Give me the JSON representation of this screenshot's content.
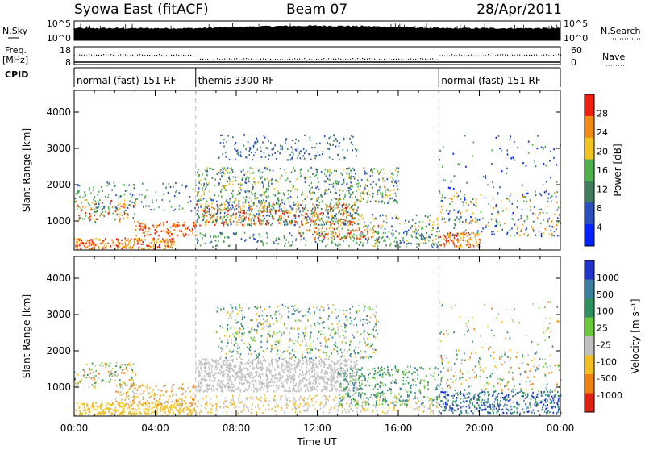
{
  "header": {
    "station": "Syowa East (fitACF)",
    "beam": "Beam 07",
    "date": "28/Apr/2011"
  },
  "nsky_panel": {
    "left_label": "N.Sky",
    "right_label": "N.Search",
    "left_ticks": [
      "10^5",
      "10^0"
    ],
    "right_ticks": [
      "10^5",
      "10^0"
    ]
  },
  "freq_panel": {
    "left_label_top": "Freq.",
    "left_label_bottom": "[MHz]",
    "right_label": "Nave",
    "left_ticks": [
      "18",
      "8"
    ],
    "right_ticks": [
      "60",
      "0"
    ]
  },
  "cpid_panel": {
    "label": "CPID",
    "segments": [
      {
        "label": "normal (fast) 151 RF",
        "start_hour": 0,
        "end_hour": 6
      },
      {
        "label": "themis 3300 RF",
        "start_hour": 6,
        "end_hour": 18
      },
      {
        "label": "normal (fast) 151 RF",
        "start_hour": 18,
        "end_hour": 24
      }
    ]
  },
  "chart_data": [
    {
      "type": "heatmap",
      "ylabel": "Slant Range [km]",
      "yticks": [
        "1000",
        "2000",
        "3000",
        "4000"
      ],
      "ylim": [
        200,
        4600
      ],
      "colorbar": {
        "label": "Power [dB]",
        "ticks": [
          "4",
          "8",
          "12",
          "16",
          "20",
          "24",
          "28"
        ],
        "range": [
          0,
          32
        ],
        "colors": [
          "#0022ff",
          "#2a4fbf",
          "#3f7f60",
          "#4fb14c",
          "#f0c320",
          "#f08a10",
          "#ee2010"
        ]
      }
    },
    {
      "type": "heatmap",
      "ylabel": "Slant Range [km]",
      "yticks": [
        "1000",
        "2000",
        "3000",
        "4000"
      ],
      "ylim": [
        200,
        4600
      ],
      "colorbar": {
        "label": "Velocity [m s⁻¹]",
        "ticks": [
          "1000",
          "500",
          "100",
          "25",
          "-25",
          "-100",
          "-500",
          "-1000"
        ],
        "colors": [
          "#2233cc",
          "#3a7fa0",
          "#2f8f5f",
          "#6ac83a",
          "#c0c0c0",
          "#f0c020",
          "#f08010",
          "#e02010"
        ]
      }
    }
  ],
  "x_axis": {
    "label": "Time UT",
    "ticks": [
      "00:00",
      "04:00",
      "08:00",
      "12:00",
      "16:00",
      "20:00",
      "00:00"
    ],
    "xlim_hours": [
      0,
      24
    ]
  }
}
